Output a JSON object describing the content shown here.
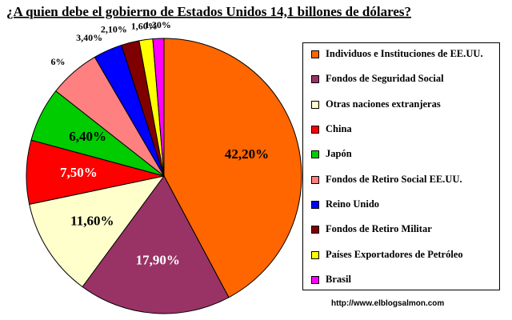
{
  "chart_data": {
    "type": "pie",
    "title": "¿A quien debe el gobierno de Estados Unidos 14,1 billones de dólares?",
    "categories": [
      "Individuos e Instituciones de EE.UU.",
      "Fondos de Seguridad Social",
      "Otras naciones extranjeras",
      "China",
      "Japón",
      "Fondos de Retiro Social EE.UU.",
      "Reino Unido",
      "Fondos de Retiro Militar",
      "Países Exportadores de Petróleo",
      "Brasil"
    ],
    "values": [
      42.2,
      17.9,
      11.6,
      7.5,
      6.4,
      6,
      3.4,
      2.1,
      1.6,
      1.3
    ],
    "value_labels": [
      "42,20%",
      "17,90%",
      "11,60%",
      "7,50%",
      "6,40%",
      "6%",
      "3,40%",
      "2,10%",
      "1,60%",
      "1,30%"
    ],
    "colors": [
      "#ff6600",
      "#993366",
      "#ffffcc",
      "#ff0000",
      "#00cc00",
      "#ff8080",
      "#0000ff",
      "#800000",
      "#ffff00",
      "#ff00ff"
    ],
    "legend": "right",
    "source": "http://www.elblogsalmon.com"
  }
}
